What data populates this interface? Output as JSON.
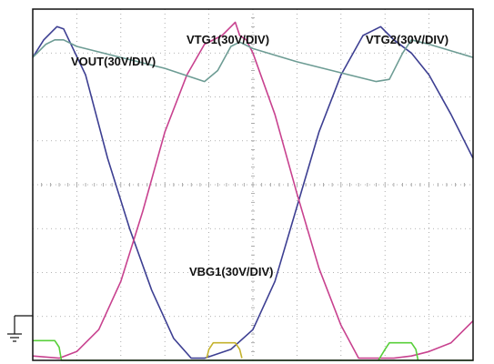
{
  "chart_data": {
    "type": "line",
    "title": "",
    "xlabel": "",
    "ylabel": "",
    "grid": true,
    "divisions": {
      "x": 10,
      "y": 8
    },
    "xlim": [
      0,
      10
    ],
    "ylim": [
      -4,
      4
    ],
    "ground_marker": "ground-symbol",
    "series": [
      {
        "name": "VOUT(30V/DIV)",
        "color": "#3d3f92",
        "x": [
          0,
          0.25,
          0.45,
          0.55,
          0.7,
          1.2,
          1.7,
          2.2,
          2.7,
          3.2,
          3.6,
          3.9,
          4.05,
          4.5,
          5.0,
          5.5,
          6.0,
          6.5,
          7.0,
          7.5,
          7.9,
          8.05,
          8.2,
          8.6,
          9.0,
          9.5,
          10.0
        ],
        "y": [
          2.9,
          3.3,
          3.5,
          3.6,
          3.55,
          2.5,
          0.6,
          -1.0,
          -2.4,
          -3.5,
          -3.95,
          -3.95,
          -3.9,
          -3.75,
          -3.3,
          -2.2,
          -0.5,
          1.2,
          2.5,
          3.4,
          3.6,
          3.45,
          3.3,
          3.0,
          2.5,
          1.6,
          0.6
        ]
      },
      {
        "name": "VTG1(30V/DIV)",
        "color": "#c8428f",
        "x": [
          0,
          0.6,
          1.0,
          1.5,
          2.0,
          2.5,
          3.0,
          3.5,
          3.9,
          4.3,
          4.5,
          4.6,
          4.7,
          4.85,
          5.0,
          5.5,
          6.0,
          6.5,
          7.0,
          7.4,
          7.8,
          8.2,
          8.6,
          9.0,
          9.5,
          10.0
        ],
        "y": [
          -3.9,
          -3.95,
          -3.8,
          -3.3,
          -2.2,
          -0.6,
          1.2,
          2.5,
          3.2,
          3.4,
          3.6,
          3.7,
          3.4,
          3.3,
          3.0,
          1.6,
          -0.2,
          -1.9,
          -3.2,
          -3.95,
          -3.95,
          -3.95,
          -3.9,
          -3.8,
          -3.6,
          -3.1
        ]
      },
      {
        "name": "VTG2(30V/DIV)",
        "color": "#6d9c94",
        "x": [
          0,
          0.3,
          0.5,
          0.7,
          1.0,
          2.0,
          3.0,
          3.9,
          4.2,
          4.5,
          4.7,
          5.0,
          6.0,
          7.0,
          7.8,
          8.1,
          8.4,
          8.6,
          9.0,
          10.0
        ],
        "y": [
          2.9,
          3.2,
          3.3,
          3.3,
          3.15,
          2.9,
          2.65,
          2.35,
          2.6,
          3.15,
          3.25,
          3.1,
          2.8,
          2.55,
          2.35,
          2.4,
          3.0,
          3.3,
          3.2,
          2.9
        ]
      },
      {
        "name": "VBG1(30V/DIV)",
        "color": "#c4b22c",
        "x": [
          3.95,
          4.0,
          4.1,
          4.6,
          4.7,
          4.75
        ],
        "y": [
          -3.95,
          -3.75,
          -3.6,
          -3.6,
          -3.75,
          -3.95
        ]
      },
      {
        "name": "",
        "color": "#58cf3a",
        "x": [
          0,
          0.5,
          0.6,
          0.65,
          10.0
        ],
        "y": [
          -3.55,
          -3.55,
          -3.7,
          -4.0,
          -4.0
        ]
      },
      {
        "name": "",
        "color": "#58cf3a",
        "x": [
          7.85,
          8.0,
          8.1,
          8.6,
          8.7,
          8.75
        ],
        "y": [
          -4.0,
          -3.75,
          -3.6,
          -3.6,
          -3.75,
          -4.0
        ]
      }
    ],
    "annotations": [
      {
        "text": "VOUT(30V/DIV)",
        "series": "VOUT(30V/DIV)"
      },
      {
        "text": "VTG1(30V/DIV)",
        "series": "VTG1(30V/DIV)"
      },
      {
        "text": "VTG2(30V/DIV)",
        "series": "VTG2(30V/DIV)"
      },
      {
        "text": "VBG1(30V/DIV)",
        "series": "VBG1(30V/DIV)"
      }
    ]
  }
}
